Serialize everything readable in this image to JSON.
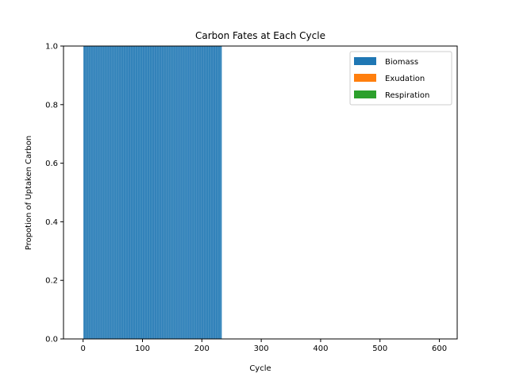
{
  "chart_data": {
    "type": "bar",
    "stacked": true,
    "title": "Carbon Fates at Each Cycle",
    "xlabel": "Cycle",
    "ylabel": "Propotion of Uptaken Carbon",
    "xlim": [
      -33,
      630
    ],
    "ylim": [
      0,
      1.0
    ],
    "xticks": [
      0,
      100,
      200,
      300,
      400,
      500,
      600
    ],
    "yticks": [
      0.0,
      0.2,
      0.4,
      0.6,
      0.8,
      1.0
    ],
    "xtick_labels": [
      "0",
      "100",
      "200",
      "300",
      "400",
      "500",
      "600"
    ],
    "ytick_labels": [
      "0.0",
      "0.2",
      "0.4",
      "0.6",
      "0.8",
      "1.0"
    ],
    "cycle_range": [
      1,
      233
    ],
    "bar_width": 0.8,
    "legend_position": "upper right",
    "series": [
      {
        "name": "Biomass",
        "color": "#1f77b4",
        "value_per_cycle": 1.0
      },
      {
        "name": "Exudation",
        "color": "#ff7f0e",
        "value_per_cycle": 0.0
      },
      {
        "name": "Respiration",
        "color": "#2ca02c",
        "value_per_cycle": 0.0
      }
    ]
  }
}
